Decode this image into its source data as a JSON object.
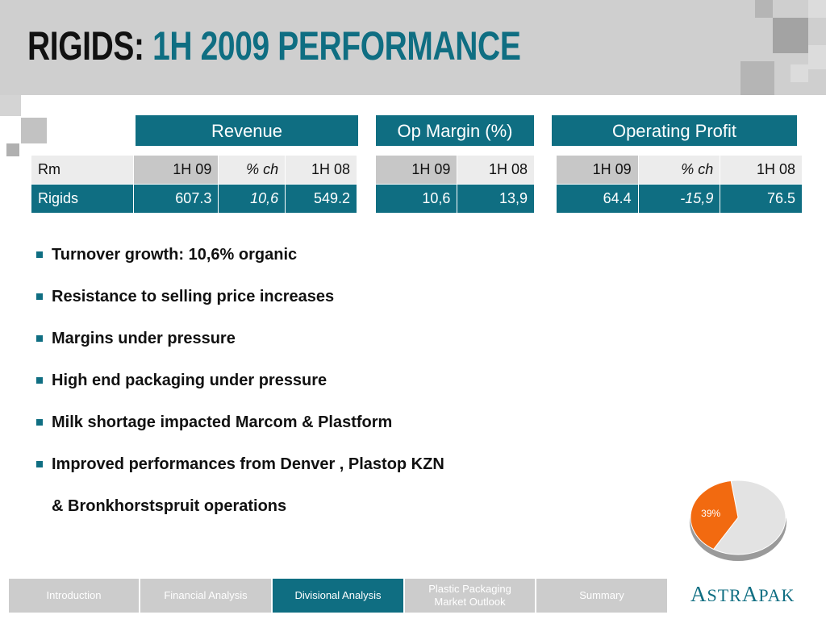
{
  "title": {
    "part1": "RIGIDS:",
    "part2": "1H 2009 PERFORMANCE"
  },
  "tables": {
    "revenue": {
      "header": "Revenue",
      "col_labels": [
        "Rm",
        "1H 09",
        "% ch",
        "1H 08"
      ],
      "row_label": "Rigids",
      "values": [
        "607.3",
        "10,6",
        "549.2"
      ]
    },
    "op_margin": {
      "header": "Op Margin (%)",
      "col_labels": [
        "1H 09",
        "1H 08"
      ],
      "values": [
        "10,6",
        "13,9"
      ]
    },
    "operating_profit": {
      "header": "Operating Profit",
      "col_labels": [
        "1H 09",
        "% ch",
        "1H 08"
      ],
      "values": [
        "64.4",
        "-15,9",
        "76.5"
      ]
    }
  },
  "bullets": [
    "Turnover growth: 10,6% organic",
    "Resistance to selling price increases",
    "Margins under pressure",
    "High end packaging under pressure",
    "Milk shortage impacted Marcom & Plastform",
    "Improved performances from Denver , Plastop KZN"
  ],
  "bullet_continuation": "& Bronkhorstspruit operations",
  "pie": {
    "label": "39%",
    "fraction": 0.39,
    "highlight_color": "#f26a10",
    "rest_color": "#e3e3e3"
  },
  "nav": {
    "items": [
      {
        "label": "Introduction",
        "active": false
      },
      {
        "label": "Financial Analysis",
        "active": false
      },
      {
        "label": "Divisional Analysis",
        "active": true
      },
      {
        "label": "Plastic Packaging Market Outlook",
        "active": false
      },
      {
        "label": "Summary",
        "active": false
      }
    ]
  },
  "logo": {
    "text_a": "A",
    "text_b": "STR",
    "text_c": "A",
    "text_d": "PAK"
  },
  "colors": {
    "accent": "#0f6e82",
    "header_bg": "#cfcfcf",
    "nav_bg": "#cccccc"
  }
}
